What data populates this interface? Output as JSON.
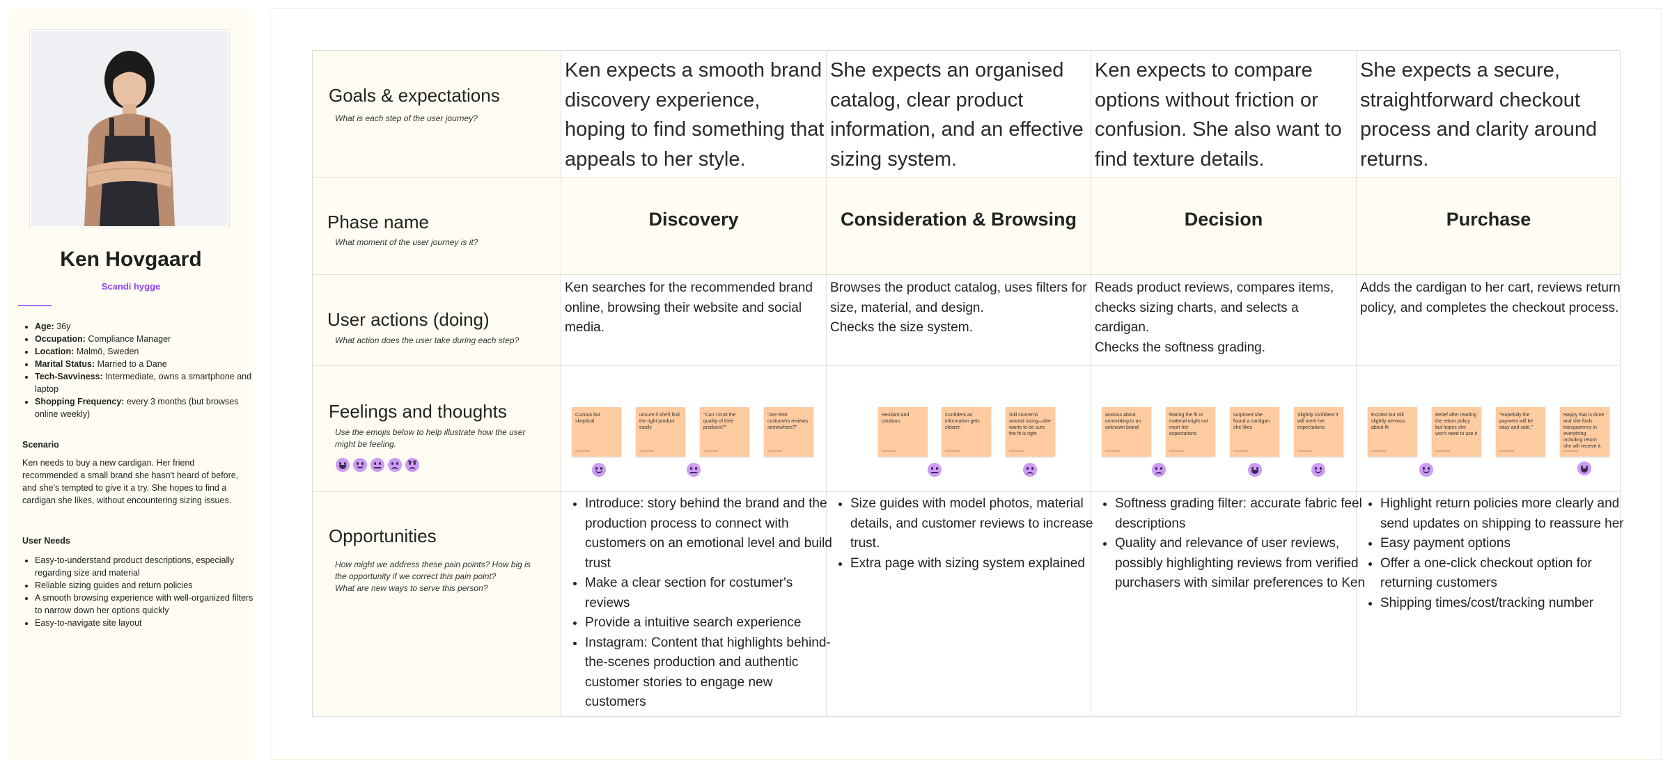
{
  "persona": {
    "name": "Ken Hovgaard",
    "subtitle": "Scandi hygge",
    "facts": [
      {
        "label": "Age:",
        "value": " 36y"
      },
      {
        "label": "Occupation:",
        "value": " Compliance Manager"
      },
      {
        "label": "Location:",
        "value": " Malmö, Sweden"
      },
      {
        "label": "Marital Status:",
        "value": " Married to a Dane"
      },
      {
        "label": "Tech-Savviness:",
        "value": " Intermediate, owns a smartphone and laptop"
      },
      {
        "label": "Shopping Frequency:",
        "value": "  every 3 months (but browses online weekly)"
      }
    ],
    "scenario_heading": "Scenario",
    "scenario": "Ken needs to buy a new cardigan. Her friend recommended a small brand she hasn't heard of before, and she's tempted to give it a try. She hopes to find a cardigan she likes, without encountering sizing issues.",
    "needs_heading": "User Needs",
    "needs": [
      "Easy-to-understand product descriptions, especially regarding size and material",
      "Reliable sizing guides and return policies",
      "A smooth browsing experience with well-organized filters to narrow down her options quickly",
      "Easy-to-navigate site layout"
    ]
  },
  "rows": {
    "goals": {
      "title": "Goals & expectations",
      "help": "What is each step of the user journey?"
    },
    "phase": {
      "title": "Phase name",
      "help": "What moment of the user journey is it?"
    },
    "actions": {
      "title": "User actions (doing)",
      "help": "What action does the user take during each step?"
    },
    "feelings": {
      "title": "Feelings and thoughts",
      "help": "Use the emojis below to help illustrate how the user might be feeling."
    },
    "opportunities": {
      "title": "Opportunities",
      "help": "How might we address these pain points? How big is the opportunity if we correct this pain point?\nWhat are new ways to serve this person?"
    }
  },
  "emoji_scale": [
    "happy",
    "content",
    "neutral",
    "sad",
    "angry"
  ],
  "phases": [
    {
      "name": "Discovery",
      "goal": "Ken expects a smooth brand discovery experience, hoping to find something that appeals to her style.",
      "action": "Ken searches for the recommended brand online, browsing their website and social media.",
      "stickies": [
        "Curious but skeptical",
        "unsure if she'll find the right product easily",
        "\"Can I trust the quality of their products?\"",
        "\"Are their costumers reviews somewhere?\""
      ],
      "emojis": [
        "content",
        "neutral"
      ],
      "opportunities": [
        "Introduce: story behind the brand and the production process to connect with customers on an emotional level and build trust",
        "Make a clear section for costumer's reviews",
        "Provide a intuitive search experience",
        "Instagram: Content that highlights behind-the-scenes production and authentic customer stories to engage new customers"
      ]
    },
    {
      "name": "Consideration & Browsing",
      "goal": "She expects an organised catalog, clear product information, and an effective sizing system.",
      "action": "Browses the product catalog, uses filters for size, material, and design.\nChecks the size system.",
      "stickies": [
        "Hesitant and cautious",
        "Confident as information gets clearer.",
        "Still concerns around sizing—she wants to be sure the fit is right"
      ],
      "emojis": [
        "neutral",
        "sad"
      ],
      "opportunities": [
        "Size guides with model photos, material details, and customer reviews to increase trust.",
        "Extra page with sizing system explained"
      ]
    },
    {
      "name": "Decision",
      "goal": "Ken expects to compare options without friction or confusion. She also want to find texture details.",
      "action": "Reads product reviews, compares items, checks sizing charts, and selects a cardigan.\nChecks the softness grading.",
      "stickies": [
        "anxious about committing to an unknown brand",
        "fearing the fit or material might not meet her expectations",
        "surprised she found a cardigan she likes",
        "Slightly confident it will meet her expectations"
      ],
      "emojis": [
        "sad",
        "happy",
        "content"
      ],
      "opportunities": [
        "Softness grading filter: accurate fabric feel descriptions",
        "Quality and relevance of user reviews, possibly highlighting reviews from verified purchasers with similar preferences to Ken"
      ]
    },
    {
      "name": "Purchase",
      "goal": "She expects a secure, straightforward checkout process and clarity around returns.",
      "action": "Adds the cardigan to her cart, reviews return policy, and completes the checkout process.",
      "stickies": [
        "Excited but still slightly nervous about fit",
        "Relief after reading the return policy but hopes she won't need to use it",
        "\"Hopefully the payment will be easy and safe.\"",
        "Happy that is done and she finds transparency in everything including return she will receive it."
      ],
      "emojis": [
        "content",
        "happy"
      ],
      "opportunities": [
        "Highlight return policies more clearly and send updates on shipping to reassure her",
        "Easy payment options",
        "Offer a one-click checkout option for returning customers",
        "Shipping times/cost/tracking number"
      ]
    }
  ]
}
